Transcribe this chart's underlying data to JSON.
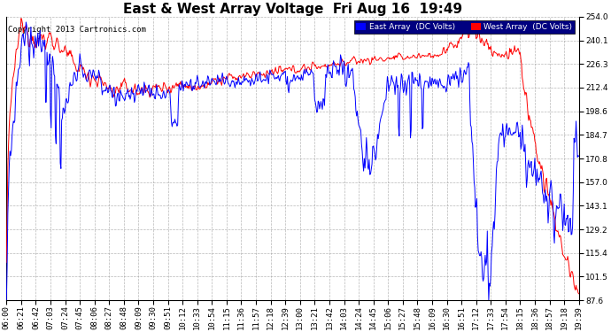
{
  "title": "East & West Array Voltage  Fri Aug 16  19:49",
  "copyright": "Copyright 2013 Cartronics.com",
  "legend_east": "East Array  (DC Volts)",
  "legend_west": "West Array  (DC Volts)",
  "east_color": "#0000FF",
  "west_color": "#FF0000",
  "background_color": "#FFFFFF",
  "plot_bg_color": "#FFFFFF",
  "grid_color": "#999999",
  "grid_style": "--",
  "ymin": 87.6,
  "ymax": 254.0,
  "yticks": [
    87.6,
    101.5,
    115.4,
    129.2,
    143.1,
    157.0,
    170.8,
    184.7,
    198.6,
    212.4,
    226.3,
    240.1,
    254.0
  ],
  "title_fontsize": 11,
  "tick_fontsize": 6.5,
  "legend_fontsize": 6.5,
  "copyright_fontsize": 6.5
}
